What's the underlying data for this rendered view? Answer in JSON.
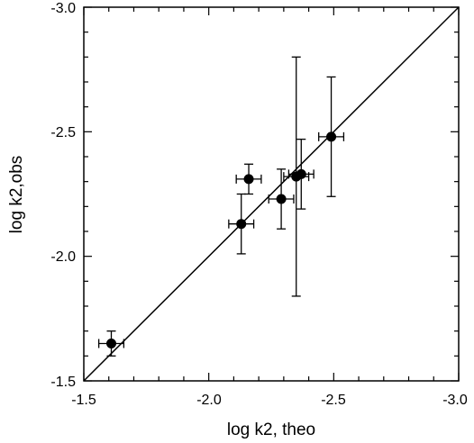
{
  "chart_data": {
    "type": "scatter",
    "title": "",
    "xlabel": "log k2, theo",
    "ylabel": "log k2,obs",
    "xlim": [
      -1.5,
      -3.0
    ],
    "ylim": [
      -1.5,
      -3.0
    ],
    "grid": false,
    "x_ticks": [
      "-1.5",
      "-2.0",
      "-2.5",
      "-3.0"
    ],
    "y_ticks": [
      "-1.5",
      "-2.0",
      "-2.5",
      "-3.0"
    ],
    "reference_line": {
      "from": [
        -1.5,
        -1.5
      ],
      "to": [
        -3.0,
        -3.0
      ]
    },
    "points": [
      {
        "x": -1.61,
        "y": -1.65,
        "xerr": 0.05,
        "yerr_low": 0.05,
        "yerr_high": 0.05
      },
      {
        "x": -2.16,
        "y": -2.31,
        "xerr": 0.05,
        "yerr_low": 0.06,
        "yerr_high": 0.06
      },
      {
        "x": -2.13,
        "y": -2.13,
        "xerr": 0.05,
        "yerr_low": 0.12,
        "yerr_high": 0.12
      },
      {
        "x": -2.29,
        "y": -2.23,
        "xerr": 0.05,
        "yerr_low": 0.12,
        "yerr_high": 0.12
      },
      {
        "x": -2.35,
        "y": -2.32,
        "xerr": 0.05,
        "yerr_low": 0.48,
        "yerr_high": 0.48
      },
      {
        "x": -2.37,
        "y": -2.33,
        "xerr": 0.05,
        "yerr_low": 0.14,
        "yerr_high": 0.14
      },
      {
        "x": -2.49,
        "y": -2.48,
        "xerr": 0.05,
        "yerr_low": 0.24,
        "yerr_high": 0.24
      }
    ]
  }
}
